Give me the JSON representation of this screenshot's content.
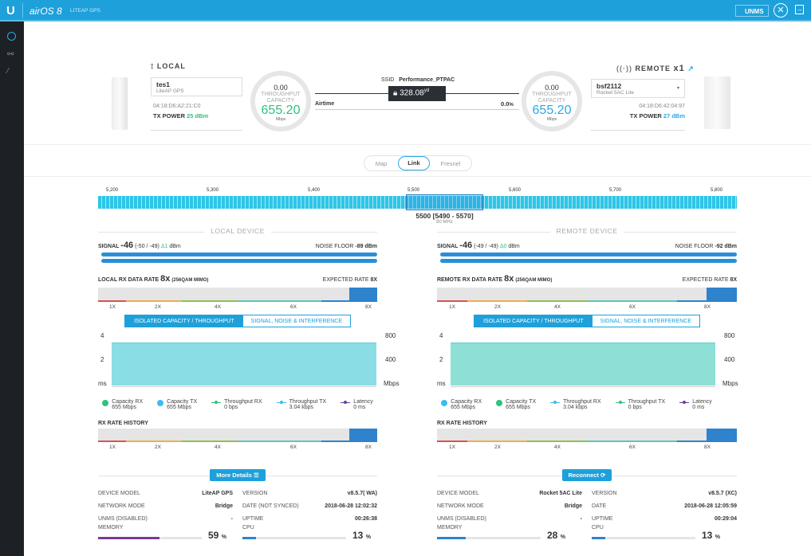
{
  "header": {
    "product": "airOS 8",
    "device": "LITEAP GPS",
    "unms_label": "UNMS"
  },
  "sidebar": {
    "items": [
      "dashboard",
      "wireless",
      "tools"
    ]
  },
  "link": {
    "local": {
      "title": "LOCAL",
      "name": "tes1",
      "model": "LiteAP GPS",
      "mac": "04:18:D6:A2:21:C0",
      "tx_label": "TX POWER",
      "tx_value": "25 dBm",
      "throughput": "0.00",
      "throughput_label": "THROUGHPUT",
      "capacity_label": "CAPACITY",
      "capacity": "655.20",
      "unit": "Mbps"
    },
    "remote": {
      "title": "REMOTE",
      "count": "x1",
      "name": "bsf2112",
      "model": "Rocket 5AC Lite",
      "mac": "04:18:D6:42:04:97",
      "tx_label": "TX POWER",
      "tx_value": "27 dBm",
      "throughput": "0.00",
      "throughput_label": "THROUGHPUT",
      "capacity_label": "CAPACITY",
      "capacity": "655.20",
      "unit": "Mbps"
    },
    "ssid_label": "SSID",
    "ssid": "Performance_PTPAC",
    "distance": "328.08",
    "distance_unit": "yd",
    "airtime_label": "Airtime",
    "airtime": "0.0",
    "airtime_unit": "%"
  },
  "view_tabs": [
    "Map",
    "Link",
    "Fresnel"
  ],
  "spectrum": {
    "ticks": [
      "5,200",
      "5,300",
      "5,400",
      "5,500",
      "5,600",
      "5,700",
      "5,800"
    ],
    "selected": "5500 [5490 - 5570]",
    "width": "80 MHz"
  },
  "panels": {
    "local": {
      "title": "LOCAL DEVICE",
      "signal_label": "SIGNAL",
      "signal": "-46",
      "chains": "(-50 / -49)",
      "delta": "Δ1",
      "signal_unit": "dBm",
      "noise_label": "NOISE FLOOR",
      "noise": "-89 dBm",
      "rate_label": "LOCAL RX DATA RATE",
      "rate": "8x",
      "rate_mod": "(256QAM MIMO)",
      "expected_label": "EXPECTED RATE",
      "expected": "8X",
      "rate_ticks": [
        "1X",
        "2X",
        "4X",
        "6X",
        "8X"
      ],
      "tab_active": "ISOLATED CAPACITY / THROUGHPUT",
      "tab_other": "SIGNAL, NOISE & INTERFERENCE",
      "chart_left": [
        "4",
        "2",
        "ms"
      ],
      "chart_right": [
        "800",
        "400",
        "Mbps"
      ],
      "legend": [
        {
          "name": "Capacity RX",
          "value": "655 Mbps"
        },
        {
          "name": "Capacity TX",
          "value": "655 Mbps"
        },
        {
          "name": "Throughput RX",
          "value": "0 bps"
        },
        {
          "name": "Throughput TX",
          "value": "3.04 kbps"
        },
        {
          "name": "Latency",
          "value": "0 ms"
        }
      ],
      "history_label": "RX RATE HISTORY",
      "button": "More Details",
      "info": {
        "model_k": "DEVICE MODEL",
        "model_v": "LiteAP GPS",
        "mode_k": "NETWORK MODE",
        "mode_v": "Bridge",
        "unms_k": "UNMS (DISABLED)",
        "unms_v": "-",
        "version_k": "VERSION",
        "version_v": "v8.5.7( WA)",
        "date_k": "DATE (NOT SYNCED)",
        "date_v": "2018-06-28 12:02:32",
        "uptime_k": "UPTIME",
        "uptime_v": "00:26:38",
        "memory_k": "MEMORY",
        "memory_v": "59",
        "cpu_k": "CPU",
        "cpu_v": "13",
        "pct": "%"
      }
    },
    "remote": {
      "title": "REMOTE DEVICE",
      "signal_label": "SIGNAL",
      "signal": "-46",
      "chains": "(-49 / -49)",
      "delta": "Δ0",
      "signal_unit": "dBm",
      "noise_label": "NOISE FLOOR",
      "noise": "-92 dBm",
      "rate_label": "REMOTE RX DATA RATE",
      "rate": "8x",
      "rate_mod": "(256QAM MIMO)",
      "expected_label": "EXPECTED RATE",
      "expected": "8X",
      "rate_ticks": [
        "1X",
        "2X",
        "4X",
        "6X",
        "8X"
      ],
      "tab_active": "ISOLATED CAPACITY / THROUGHPUT",
      "tab_other": "SIGNAL, NOISE & INTERFERENCE",
      "chart_left": [
        "4",
        "2",
        "ms"
      ],
      "chart_right": [
        "800",
        "400",
        "Mbps"
      ],
      "legend": [
        {
          "name": "Capacity RX",
          "value": "655 Mbps"
        },
        {
          "name": "Capacity TX",
          "value": "655 Mbps"
        },
        {
          "name": "Throughput RX",
          "value": "3.04 kbps"
        },
        {
          "name": "Throughput TX",
          "value": "0 bps"
        },
        {
          "name": "Latency",
          "value": "0 ms"
        }
      ],
      "history_label": "RX RATE HISTORY",
      "button": "Reconnect",
      "info": {
        "model_k": "DEVICE MODEL",
        "model_v": "Rocket 5AC Lite",
        "mode_k": "NETWORK MODE",
        "mode_v": "Bridge",
        "unms_k": "UNMS (DISABLED)",
        "unms_v": "-",
        "version_k": "VERSION",
        "version_v": "v8.5.7 (XC)",
        "date_k": "DATE",
        "date_v": "2018-06-28 12:05:59",
        "uptime_k": "UPTIME",
        "uptime_v": "00:29:04",
        "memory_k": "MEMORY",
        "memory_v": "28",
        "cpu_k": "CPU",
        "cpu_v": "13",
        "pct": "%"
      }
    }
  },
  "colors": {
    "accent": "#1ea0da",
    "green": "#2ec27e",
    "blue": "#2aa8e6",
    "memory_local": "#7a3a9a",
    "memory_remote": "#2f83cc"
  }
}
